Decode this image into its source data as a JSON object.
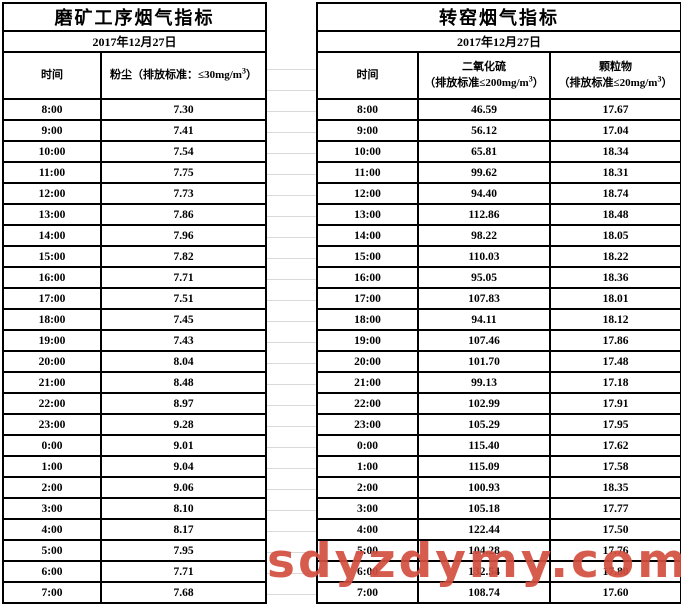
{
  "watermark": {
    "text": "sdyzdymy.com",
    "color": "#d34f3f"
  },
  "grinding_table": {
    "title": "磨矿工序烟气指标",
    "date": "2017年12月27日",
    "columns": {
      "time": "时间",
      "dust_prefix": "粉尘（排放标准：≤30mg/m",
      "dust_sup": "3",
      "dust_suffix": "）"
    },
    "rows": [
      {
        "time": "8:00",
        "value": "7.30"
      },
      {
        "time": "9:00",
        "value": "7.41"
      },
      {
        "time": "10:00",
        "value": "7.54"
      },
      {
        "time": "11:00",
        "value": "7.75"
      },
      {
        "time": "12:00",
        "value": "7.73"
      },
      {
        "time": "13:00",
        "value": "7.86"
      },
      {
        "time": "14:00",
        "value": "7.96"
      },
      {
        "time": "15:00",
        "value": "7.82"
      },
      {
        "time": "16:00",
        "value": "7.71"
      },
      {
        "time": "17:00",
        "value": "7.51"
      },
      {
        "time": "18:00",
        "value": "7.45"
      },
      {
        "time": "19:00",
        "value": "7.43"
      },
      {
        "time": "20:00",
        "value": "8.04"
      },
      {
        "time": "21:00",
        "value": "8.48"
      },
      {
        "time": "22:00",
        "value": "8.97"
      },
      {
        "time": "23:00",
        "value": "9.28"
      },
      {
        "time": "0:00",
        "value": "9.01"
      },
      {
        "time": "1:00",
        "value": "9.04"
      },
      {
        "time": "2:00",
        "value": "9.06"
      },
      {
        "time": "3:00",
        "value": "8.10"
      },
      {
        "time": "4:00",
        "value": "8.17"
      },
      {
        "time": "5:00",
        "value": "7.95"
      },
      {
        "time": "6:00",
        "value": "7.71"
      },
      {
        "time": "7:00",
        "value": "7.68"
      }
    ]
  },
  "kiln_table": {
    "title": "转窑烟气指标",
    "date": "2017年12月27日",
    "columns": {
      "time": "时间",
      "so2_name": "二氧化硫",
      "so2_prefix": "（排放标准≤200mg/m",
      "so2_sup": "3",
      "so2_suffix": "）",
      "pm_name": "颗粒物",
      "pm_prefix": "（排放标准≤20mg/m",
      "pm_sup": "3",
      "pm_suffix": "）"
    },
    "rows": [
      {
        "time": "8:00",
        "so2": "46.59",
        "pm": "17.67"
      },
      {
        "time": "9:00",
        "so2": "56.12",
        "pm": "17.04"
      },
      {
        "time": "10:00",
        "so2": "65.81",
        "pm": "18.34"
      },
      {
        "time": "11:00",
        "so2": "99.62",
        "pm": "18.31"
      },
      {
        "time": "12:00",
        "so2": "94.40",
        "pm": "18.74"
      },
      {
        "time": "13:00",
        "so2": "112.86",
        "pm": "18.48"
      },
      {
        "time": "14:00",
        "so2": "98.22",
        "pm": "18.05"
      },
      {
        "time": "15:00",
        "so2": "110.03",
        "pm": "18.22"
      },
      {
        "time": "16:00",
        "so2": "95.05",
        "pm": "18.36"
      },
      {
        "time": "17:00",
        "so2": "107.83",
        "pm": "18.01"
      },
      {
        "time": "18:00",
        "so2": "94.11",
        "pm": "18.12"
      },
      {
        "time": "19:00",
        "so2": "107.46",
        "pm": "17.86"
      },
      {
        "time": "20:00",
        "so2": "101.70",
        "pm": "17.48"
      },
      {
        "time": "21:00",
        "so2": "99.13",
        "pm": "17.18"
      },
      {
        "time": "22:00",
        "so2": "102.99",
        "pm": "17.91"
      },
      {
        "time": "23:00",
        "so2": "105.29",
        "pm": "17.95"
      },
      {
        "time": "0:00",
        "so2": "115.40",
        "pm": "17.62"
      },
      {
        "time": "1:00",
        "so2": "115.09",
        "pm": "17.58"
      },
      {
        "time": "2:00",
        "so2": "100.93",
        "pm": "18.35"
      },
      {
        "time": "3:00",
        "so2": "105.18",
        "pm": "17.77"
      },
      {
        "time": "4:00",
        "so2": "122.44",
        "pm": "17.50"
      },
      {
        "time": "5:00",
        "so2": "104.28",
        "pm": "17.76"
      },
      {
        "time": "6:00",
        "so2": "132.54",
        "pm": "17.80"
      },
      {
        "time": "7:00",
        "so2": "108.74",
        "pm": "17.60"
      }
    ]
  }
}
